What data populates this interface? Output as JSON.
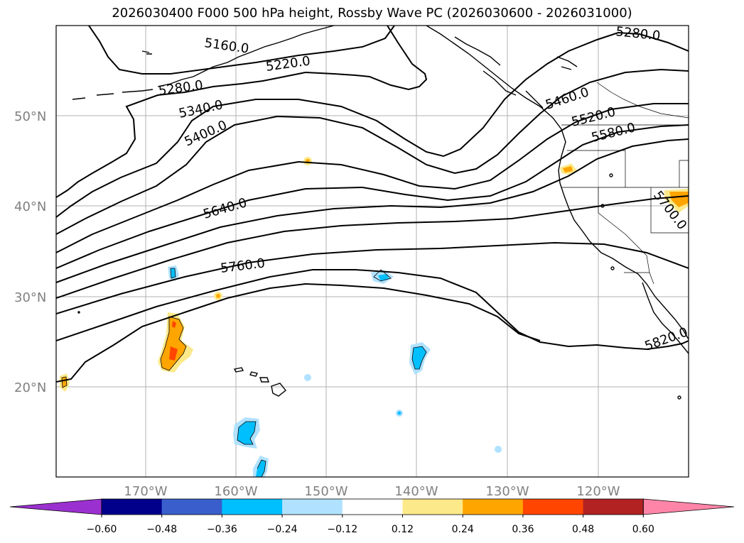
{
  "title": "2026030400 F000 500 hPa height, Rossby Wave PC (2026030600 - 2026031000)",
  "lat_labels": [
    "50°N",
    "40°N",
    "30°N",
    "20°N"
  ],
  "lon_labels": [
    "170°W",
    "160°W",
    "150°W",
    "140°W",
    "130°W",
    "120°W"
  ],
  "contour_labels": [
    "5160.0",
    "5220.0",
    "5280.0",
    "5280.0",
    "5340.0",
    "5400.0",
    "5460.0",
    "5520.0",
    "5580.0",
    "5640.0",
    "5700.0",
    "5760.0",
    "5820.0"
  ],
  "colorbar": {
    "ticks": [
      "−0.60",
      "−0.48",
      "−0.36",
      "−0.24",
      "−0.12",
      "0.12",
      "0.24",
      "0.36",
      "0.48",
      "0.60"
    ],
    "colors": [
      "#9b30d0",
      "#00008b",
      "#3a5fcd",
      "#00bfff",
      "#b0e2ff",
      "#ffffff",
      "#fce98a",
      "#ffa500",
      "#ff4500",
      "#b22222",
      "#ff85a8"
    ]
  },
  "colors": {
    "frame": "#000000",
    "grid": "#b0b0b0",
    "axis_text": "#808080"
  }
}
